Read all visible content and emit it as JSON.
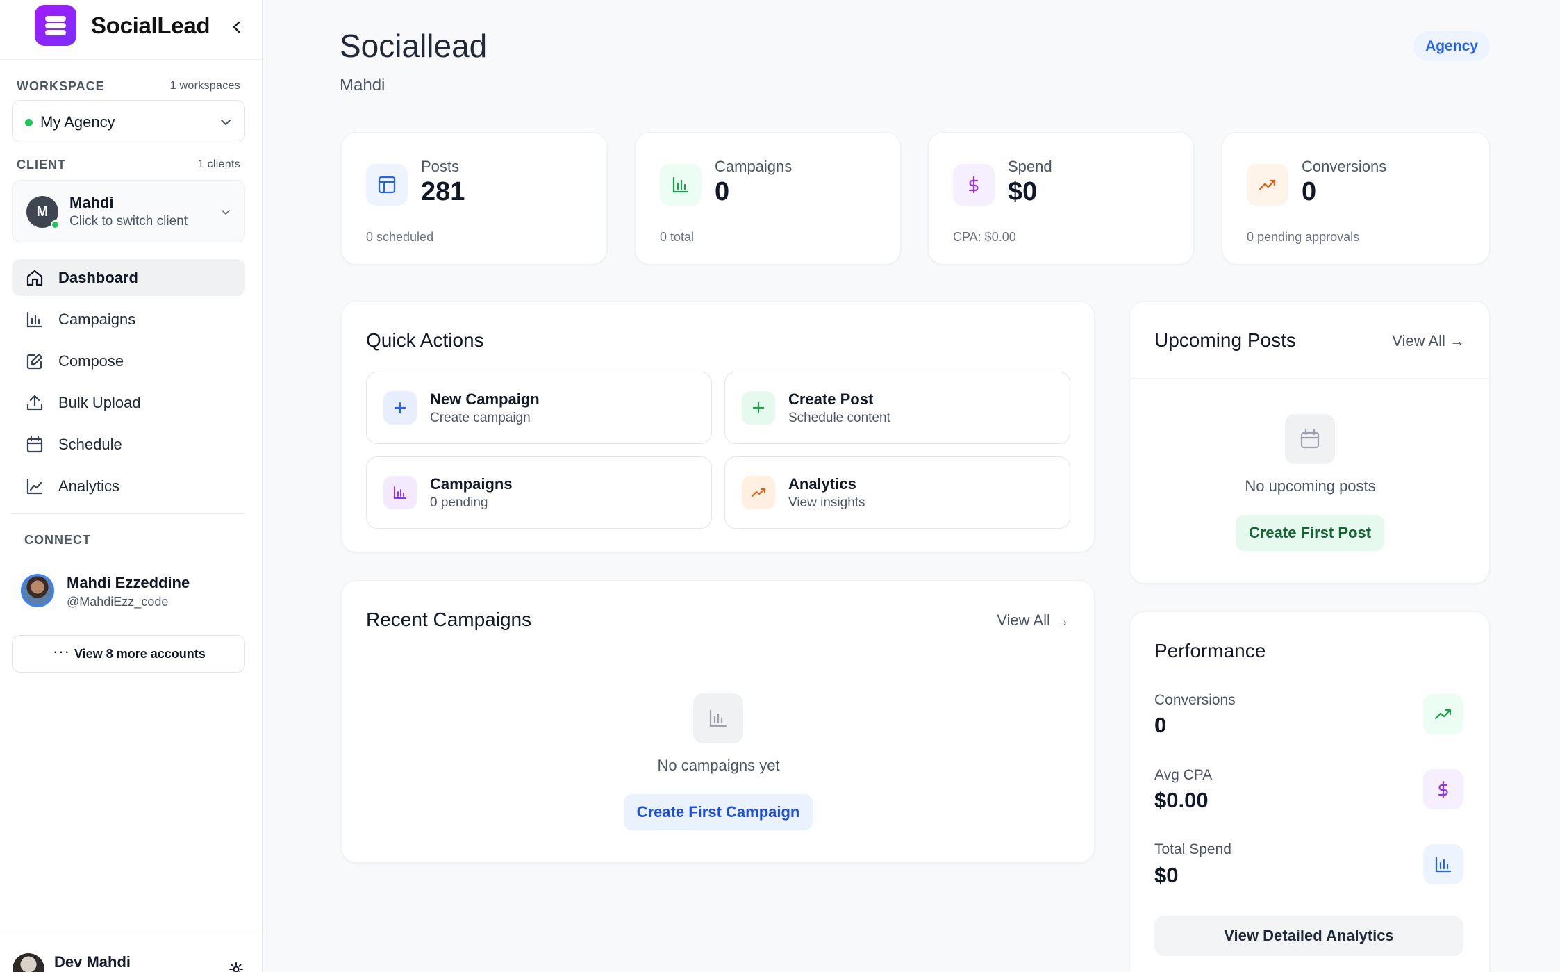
{
  "brand": {
    "name": "SocialLead"
  },
  "sidebar": {
    "workspace_label": "WORKSPACE",
    "workspace_count": "1 workspaces",
    "workspace_selected": "My Agency",
    "client_label": "CLIENT",
    "client_count": "1 clients",
    "client": {
      "initial": "M",
      "name": "Mahdi",
      "hint": "Click to switch client"
    },
    "nav": [
      {
        "label": "Dashboard",
        "icon": "home-icon",
        "active": true
      },
      {
        "label": "Campaigns",
        "icon": "bar-chart-icon"
      },
      {
        "label": "Compose",
        "icon": "edit-icon"
      },
      {
        "label": "Bulk Upload",
        "icon": "upload-icon"
      },
      {
        "label": "Schedule",
        "icon": "calendar-icon"
      },
      {
        "label": "Analytics",
        "icon": "line-chart-icon"
      }
    ],
    "connect_label": "CONNECT",
    "account": {
      "name": "Mahdi Ezzeddine",
      "handle": "@MahdiEzz_code"
    },
    "more_dots": "···",
    "more_accounts": "View 8 more accounts",
    "user": {
      "name": "Dev Mahdi"
    }
  },
  "header": {
    "title": "Sociallead",
    "subtitle": "Mahdi",
    "tier_badge": "Agency"
  },
  "stats": [
    {
      "label": "Posts",
      "value": "281",
      "sub": "0 scheduled",
      "icon": "layout-icon",
      "color": "#2563eb",
      "bg": "#eef4ff"
    },
    {
      "label": "Campaigns",
      "value": "0",
      "sub": "0 total",
      "icon": "bar-chart-icon",
      "color": "#16a34a",
      "bg": "#ecfdf3"
    },
    {
      "label": "Spend",
      "value": "$0",
      "sub": "CPA: $0.00",
      "icon": "dollar-icon",
      "color": "#9333ea",
      "bg": "#f5efff"
    },
    {
      "label": "Conversions",
      "value": "0",
      "sub": "0 pending approvals",
      "icon": "trending-up-icon",
      "color": "#ea580c",
      "bg": "#fff4ea"
    }
  ],
  "quick_actions": {
    "title": "Quick Actions",
    "items": [
      {
        "title": "New Campaign",
        "sub": "Create campaign",
        "icon": "plus-icon",
        "color": "#2563eb",
        "bg": "#e7efff"
      },
      {
        "title": "Create Post",
        "sub": "Schedule content",
        "icon": "plus-icon",
        "color": "#16a34a",
        "bg": "#e6f9ee"
      },
      {
        "title": "Campaigns",
        "sub": "0 pending",
        "icon": "bar-chart-icon",
        "color": "#9333ea",
        "bg": "#f3eaff"
      },
      {
        "title": "Analytics",
        "sub": "View insights",
        "icon": "trending-up-icon",
        "color": "#ea580c",
        "bg": "#fff0e2"
      }
    ]
  },
  "recent_campaigns": {
    "title": "Recent Campaigns",
    "view_all": "View All →",
    "empty": "No campaigns yet",
    "cta": "Create First Campaign"
  },
  "upcoming_posts": {
    "title": "Upcoming Posts",
    "view_all": "View All →",
    "empty": "No upcoming posts",
    "cta": "Create First Post"
  },
  "performance": {
    "title": "Performance",
    "metrics": [
      {
        "label": "Conversions",
        "value": "0",
        "icon": "trending-up-icon",
        "color": "#16a34a",
        "bg": "#ecfdf3"
      },
      {
        "label": "Avg CPA",
        "value": "$0.00",
        "icon": "dollar-icon",
        "color": "#9333ea",
        "bg": "#f5efff"
      },
      {
        "label": "Total Spend",
        "value": "$0",
        "icon": "bar-chart-icon",
        "color": "#2563eb",
        "bg": "#eef4ff"
      }
    ],
    "detail_button": "View Detailed Analytics"
  }
}
